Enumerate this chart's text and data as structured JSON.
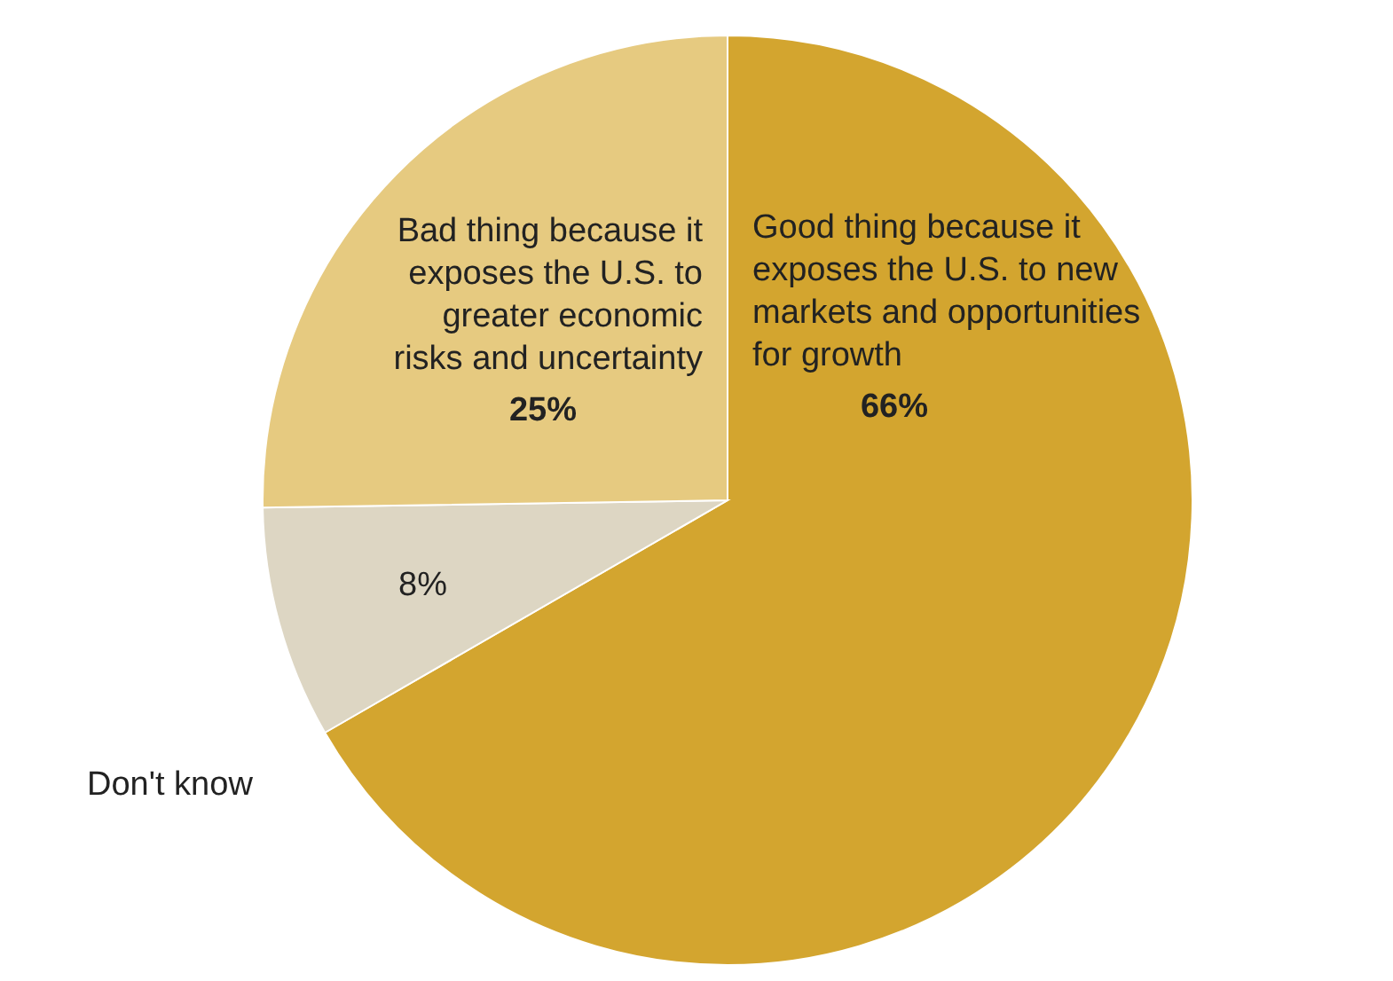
{
  "chart_data": {
    "type": "pie",
    "categories": [
      "Good thing because it exposes the U.S. to new markets and opportunities for growth",
      "Don't know",
      "Bad thing because it exposes the U.S. to greater economic risks and uncertainty"
    ],
    "values": [
      66,
      8,
      25
    ],
    "colors": [
      "#d3a52f",
      "#ddd6c3",
      "#e6ca80"
    ],
    "value_labels": [
      "66%",
      "8%",
      "25%"
    ]
  }
}
